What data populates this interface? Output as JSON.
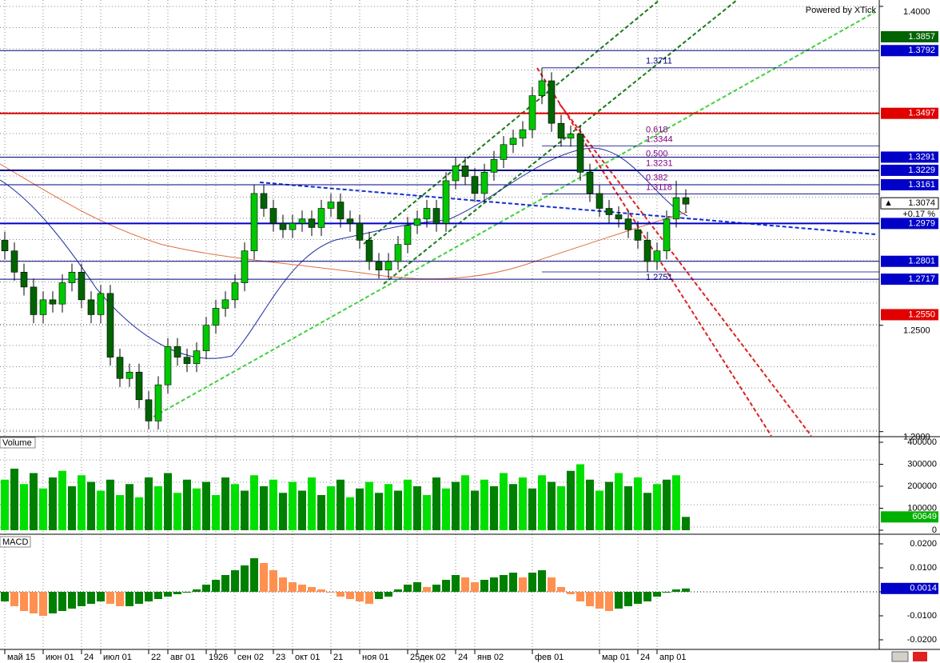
{
  "watermark": "Powered by XTick",
  "chart_data": [
    {
      "type": "candlestick",
      "title": "",
      "categories": [
        "май 15",
        null,
        null,
        null,
        "июн 01",
        null,
        null,
        null,
        "24",
        null,
        "июл 01",
        null,
        null,
        null,
        null,
        "22",
        null,
        "авг 01",
        null,
        null,
        null,
        "19",
        "26",
        null,
        "сен 02",
        null,
        null,
        null,
        "23",
        null,
        "окт 01",
        null,
        null,
        null,
        "21",
        null,
        null,
        "ноя 01",
        null,
        null,
        null,
        null,
        "25",
        "дек 02",
        null,
        null,
        null,
        "24",
        null,
        "янв 02",
        null,
        null,
        null,
        null,
        null,
        "фев 01",
        null,
        null,
        null,
        null,
        null,
        null,
        "мар 01",
        null,
        null,
        null,
        "24",
        null,
        "апр 01",
        null,
        null,
        null
      ],
      "open": [
        1.29,
        1.285,
        1.275,
        1.268,
        1.255,
        1.262,
        1.26,
        1.27,
        1.275,
        1.262,
        1.255,
        1.265,
        1.235,
        1.225,
        1.228,
        1.215,
        1.205,
        1.222,
        1.24,
        1.235,
        1.232,
        1.238,
        1.25,
        1.258,
        1.262,
        1.27,
        1.285,
        1.312,
        1.305,
        1.298,
        1.295,
        1.298,
        1.3,
        1.296,
        1.305,
        1.308,
        1.3,
        1.298,
        1.29,
        1.28,
        1.276,
        1.28,
        1.288,
        1.297,
        1.3,
        1.305,
        1.298,
        1.318,
        1.325,
        1.32,
        1.312,
        1.322,
        1.328,
        1.335,
        1.338,
        1.342,
        1.358,
        1.365,
        1.345,
        1.338,
        1.34,
        1.322,
        1.312,
        1.305,
        1.302,
        1.3,
        1.295,
        1.29,
        1.28,
        1.285,
        1.3,
        1.31
      ],
      "high": [
        1.294,
        1.289,
        1.279,
        1.272,
        1.266,
        1.266,
        1.274,
        1.279,
        1.279,
        1.266,
        1.269,
        1.269,
        1.239,
        1.232,
        1.232,
        1.219,
        1.226,
        1.244,
        1.244,
        1.239,
        1.242,
        1.254,
        1.262,
        1.266,
        1.274,
        1.289,
        1.316,
        1.316,
        1.309,
        1.302,
        1.302,
        1.304,
        1.304,
        1.309,
        1.312,
        1.312,
        1.304,
        1.302,
        1.294,
        1.284,
        1.284,
        1.292,
        1.301,
        1.304,
        1.309,
        1.309,
        1.322,
        1.329,
        1.329,
        1.324,
        1.326,
        1.332,
        1.339,
        1.342,
        1.346,
        1.362,
        1.3711,
        1.369,
        1.349,
        1.344,
        1.344,
        1.326,
        1.316,
        1.309,
        1.306,
        1.304,
        1.299,
        1.294,
        1.289,
        1.304,
        1.318,
        1.314
      ],
      "low": [
        1.281,
        1.271,
        1.264,
        1.251,
        1.251,
        1.256,
        1.256,
        1.266,
        1.258,
        1.251,
        1.251,
        1.231,
        1.221,
        1.221,
        1.211,
        1.201,
        1.201,
        1.218,
        1.231,
        1.228,
        1.228,
        1.234,
        1.246,
        1.254,
        1.258,
        1.266,
        1.281,
        1.301,
        1.294,
        1.291,
        1.291,
        1.294,
        1.292,
        1.292,
        1.301,
        1.296,
        1.294,
        1.286,
        1.276,
        1.272,
        1.272,
        1.276,
        1.284,
        1.293,
        1.296,
        1.294,
        1.294,
        1.314,
        1.316,
        1.308,
        1.308,
        1.318,
        1.324,
        1.331,
        1.334,
        1.338,
        1.354,
        1.341,
        1.334,
        1.334,
        1.318,
        1.308,
        1.301,
        1.298,
        1.296,
        1.291,
        1.286,
        1.2751,
        1.276,
        1.281,
        1.296,
        1.303
      ],
      "close": [
        1.285,
        1.275,
        1.268,
        1.255,
        1.262,
        1.26,
        1.27,
        1.275,
        1.262,
        1.255,
        1.265,
        1.235,
        1.225,
        1.228,
        1.215,
        1.205,
        1.222,
        1.24,
        1.235,
        1.232,
        1.238,
        1.25,
        1.258,
        1.262,
        1.27,
        1.285,
        1.312,
        1.305,
        1.298,
        1.295,
        1.298,
        1.3,
        1.296,
        1.305,
        1.308,
        1.3,
        1.298,
        1.29,
        1.28,
        1.276,
        1.28,
        1.288,
        1.297,
        1.3,
        1.305,
        1.298,
        1.318,
        1.325,
        1.32,
        1.312,
        1.322,
        1.328,
        1.335,
        1.338,
        1.342,
        1.358,
        1.365,
        1.345,
        1.338,
        1.34,
        1.322,
        1.312,
        1.305,
        1.302,
        1.3,
        1.295,
        1.29,
        1.28,
        1.285,
        1.3,
        1.31,
        1.307
      ],
      "up_color": "#00c800",
      "down_color": "#006400",
      "ylim": [
        1.198,
        1.403
      ],
      "yticks": [
        {
          "value": 1.4,
          "label": "1.4000"
        },
        {
          "value": 1.25,
          "label": "1.2500"
        },
        {
          "value": 1.2,
          "label": "1.2000"
        }
      ],
      "levels": [
        {
          "value": 1.3857,
          "bg": "#006400",
          "text_color": "#ffffff"
        },
        {
          "value": 1.3792,
          "bg": "#0000c8",
          "text_color": "#ffffff",
          "line_color": "#000080",
          "line_width": 1
        },
        {
          "value": 1.3497,
          "bg": "#e00000",
          "text_color": "#ffffff",
          "line_color": "#e00000",
          "line_width": 2
        },
        {
          "value": 1.3291,
          "bg": "#0000c8",
          "text_color": "#ffffff",
          "line_color": "#000080",
          "line_width": 1
        },
        {
          "value": 1.3229,
          "bg": "#0000c8",
          "text_color": "#ffffff",
          "line_color": "#000080",
          "line_width": 2
        },
        {
          "value": 1.3161,
          "bg": "#0000c8",
          "text_color": "#ffffff",
          "line_color": "#000080",
          "line_width": 1
        },
        {
          "value": 1.2979,
          "bg": "#0000c8",
          "text_color": "#ffffff",
          "line_color": "#0000c8",
          "line_width": 2
        },
        {
          "value": 1.2801,
          "bg": "#0000c8",
          "text_color": "#ffffff",
          "line_color": "#000080",
          "line_width": 1
        },
        {
          "value": 1.2717,
          "bg": "#0000c8",
          "text_color": "#ffffff",
          "line_color": "#000080",
          "line_width": 1
        },
        {
          "value": {
            "value": 1.255,
            "label": "1.2550"
          },
          "bg": "#e00000",
          "text_color": "#ffffff"
        }
      ],
      "current": 1.3074,
      "change": "+0.17 %",
      "fib": {
        "high": 1.3711,
        "low": 1.2751,
        "color": "#000080",
        "levels": [
          {
            "ratio": 0.618,
            "price": 1.3344
          },
          {
            "ratio": {
              "value": 0.5,
              "label": "0.500"
            },
            "price": 1.3231
          },
          {
            "ratio": 0.382,
            "price": 1.3118
          }
        ]
      }
    },
    {
      "type": "bar",
      "title": "Volume",
      "values": [
        230000,
        280000,
        210000,
        260000,
        190000,
        240000,
        270000,
        200000,
        250000,
        220000,
        180000,
        230000,
        160000,
        210000,
        150000,
        240000,
        200000,
        260000,
        170000,
        230000,
        190000,
        220000,
        160000,
        240000,
        210000,
        180000,
        250000,
        200000,
        230000,
        170000,
        220000,
        180000,
        240000,
        160000,
        200000,
        230000,
        150000,
        190000,
        220000,
        170000,
        210000,
        180000,
        230000,
        200000,
        160000,
        240000,
        190000,
        220000,
        250000,
        180000,
        230000,
        200000,
        260000,
        210000,
        240000,
        190000,
        250000,
        220000,
        200000,
        270000,
        300000,
        230000,
        180000,
        220000,
        260000,
        200000,
        240000,
        170000,
        210000,
        230000,
        250000,
        60649
      ],
      "colors": [
        "#00e000",
        "#008000"
      ],
      "label_bg": "#00b000",
      "ylim": [
        0,
        400000
      ],
      "yticks": [
        400000,
        300000,
        200000,
        100000,
        0
      ]
    },
    {
      "type": "bar",
      "title": "MACD",
      "values": [
        -0.004,
        -0.006,
        -0.008,
        -0.009,
        -0.01,
        -0.009,
        -0.008,
        -0.007,
        -0.006,
        -0.005,
        -0.004,
        -0.005,
        -0.006,
        -0.006,
        -0.005,
        -0.004,
        -0.003,
        -0.002,
        -0.001,
        0,
        0.001,
        0.003,
        0.005,
        0.007,
        0.009,
        0.011,
        0.014,
        0.012,
        0.009,
        0.006,
        0.004,
        0.003,
        0.002,
        0.001,
        0,
        -0.002,
        -0.003,
        -0.004,
        -0.005,
        -0.003,
        -0.002,
        0.001,
        0.003,
        0.004,
        0.002,
        0.003,
        0.005,
        0.007,
        0.006,
        0.004,
        0.005,
        0.006,
        0.007,
        0.008,
        0.006,
        0.008,
        0.009,
        0.006,
        0.002,
        -0.001,
        -0.004,
        -0.006,
        -0.007,
        -0.008,
        -0.007,
        -0.006,
        -0.005,
        -0.004,
        -0.002,
        0,
        0.001,
        0.0014
      ],
      "up_color": "#008000",
      "down_color": "#ff9050",
      "label_bg": "#0000c8",
      "ylim": [
        -0.02,
        0.02
      ],
      "yticks": [
        {
          "value": 0.02,
          "label": "0.0200"
        },
        {
          "value": 0.01,
          "label": "0.0100"
        },
        0,
        {
          "value": -0.01,
          "label": "-0.0100"
        },
        {
          "value": -0.02,
          "label": "-0.0200"
        }
      ]
    }
  ]
}
